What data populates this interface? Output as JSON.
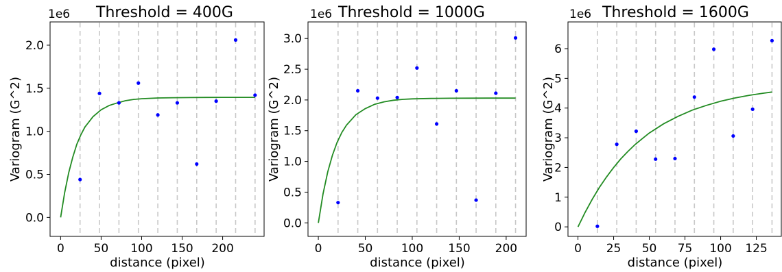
{
  "chart_data": [
    {
      "type": "scatter",
      "title": "Threshold = 400G",
      "xlabel": "distance (pixel)",
      "ylabel": "Variogram (G^2)",
      "offset_text": "1e6",
      "xlim": [
        -13,
        252
      ],
      "ylim": [
        -0.22,
        2.27
      ],
      "xticks": [
        0,
        50,
        100,
        150,
        200
      ],
      "xtick_labels": [
        "0",
        "50",
        "100",
        "150",
        "200"
      ],
      "yticks": [
        0.0,
        0.5,
        1.0,
        1.5,
        2.0
      ],
      "ytick_labels": [
        "0.0",
        "0.5",
        "1.0",
        "1.5",
        "2.0"
      ],
      "vlines": [
        24,
        48,
        72,
        96,
        120,
        144,
        168,
        192,
        216,
        240
      ],
      "series": [
        {
          "kind": "points",
          "color": "#0000ff",
          "x": [
            24,
            48,
            72,
            96,
            120,
            144,
            168,
            192,
            216,
            240
          ],
          "y": [
            0.44,
            1.44,
            1.33,
            1.56,
            1.19,
            1.33,
            0.62,
            1.35,
            2.06,
            1.42
          ]
        },
        {
          "kind": "line",
          "color": "#228b22",
          "x": [
            0,
            5,
            10,
            15,
            20,
            25,
            30,
            40,
            50,
            60,
            70,
            80,
            90,
            100,
            120,
            140,
            160,
            180,
            200,
            220,
            240
          ],
          "y": [
            0.0,
            0.29,
            0.52,
            0.7,
            0.85,
            0.96,
            1.05,
            1.17,
            1.25,
            1.3,
            1.33,
            1.355,
            1.37,
            1.378,
            1.387,
            1.39,
            1.392,
            1.393,
            1.394,
            1.394,
            1.394
          ]
        }
      ]
    },
    {
      "type": "scatter",
      "title": "Threshold = 1000G",
      "xlabel": "distance (pixel)",
      "ylabel": "Variogram (G^2)",
      "offset_text": "1e6",
      "xlim": [
        -11,
        222
      ],
      "ylim": [
        -0.22,
        3.27
      ],
      "xticks": [
        0,
        50,
        100,
        150,
        200
      ],
      "xtick_labels": [
        "0",
        "50",
        "100",
        "150",
        "200"
      ],
      "yticks": [
        0.0,
        0.5,
        1.0,
        1.5,
        2.0,
        2.5,
        3.0
      ],
      "ytick_labels": [
        "0.0",
        "0.5",
        "1.0",
        "1.5",
        "2.0",
        "2.5",
        "3.0"
      ],
      "vlines": [
        21,
        42,
        63,
        84,
        105,
        126,
        147,
        168,
        189,
        210
      ],
      "series": [
        {
          "kind": "points",
          "color": "#0000ff",
          "x": [
            21,
            42,
            63,
            84,
            105,
            126,
            147,
            168,
            189,
            210
          ],
          "y": [
            0.33,
            2.15,
            2.03,
            2.04,
            2.52,
            1.61,
            2.15,
            0.37,
            2.11,
            3.01
          ]
        },
        {
          "kind": "line",
          "color": "#228b22",
          "x": [
            0,
            5,
            10,
            15,
            20,
            25,
            30,
            40,
            50,
            60,
            70,
            80,
            90,
            100,
            120,
            140,
            160,
            180,
            200,
            210
          ],
          "y": [
            0.0,
            0.47,
            0.83,
            1.1,
            1.31,
            1.47,
            1.59,
            1.76,
            1.86,
            1.93,
            1.97,
            1.995,
            2.01,
            2.018,
            2.025,
            2.028,
            2.029,
            2.03,
            2.03,
            2.03
          ]
        }
      ]
    },
    {
      "type": "scatter",
      "title": "Threshold = 1600G",
      "xlabel": "distance (pixel)",
      "ylabel": "Variogram (G^2)",
      "offset_text": "1e6",
      "xlim": [
        -7,
        143
      ],
      "ylim": [
        -0.32,
        6.9
      ],
      "xticks": [
        0,
        25,
        50,
        75,
        100,
        125
      ],
      "xtick_labels": [
        "0",
        "25",
        "50",
        "75",
        "100",
        "125"
      ],
      "yticks": [
        0,
        1,
        2,
        3,
        4,
        5,
        6
      ],
      "ytick_labels": [
        "0",
        "1",
        "2",
        "3",
        "4",
        "5",
        "6"
      ],
      "vlines": [
        13.6,
        27.2,
        40.8,
        54.4,
        68,
        81.6,
        95.2,
        108.8,
        122.4,
        136
      ],
      "series": [
        {
          "kind": "points",
          "color": "#0000ff",
          "x": [
            13.6,
            27.2,
            40.8,
            54.4,
            68,
            81.6,
            95.2,
            108.8,
            122.4,
            136
          ],
          "y": [
            0.02,
            2.78,
            3.22,
            2.28,
            2.3,
            4.37,
            5.98,
            3.06,
            3.96,
            6.27
          ]
        },
        {
          "kind": "line",
          "color": "#228b22",
          "x": [
            0,
            5,
            10,
            15,
            20,
            25,
            30,
            35,
            40,
            45,
            50,
            60,
            70,
            80,
            90,
            100,
            110,
            120,
            130,
            136
          ],
          "y": [
            0.0,
            0.49,
            0.93,
            1.33,
            1.68,
            2.0,
            2.29,
            2.54,
            2.77,
            2.97,
            3.16,
            3.47,
            3.72,
            3.93,
            4.09,
            4.23,
            4.34,
            4.43,
            4.5,
            4.54
          ]
        }
      ]
    }
  ]
}
